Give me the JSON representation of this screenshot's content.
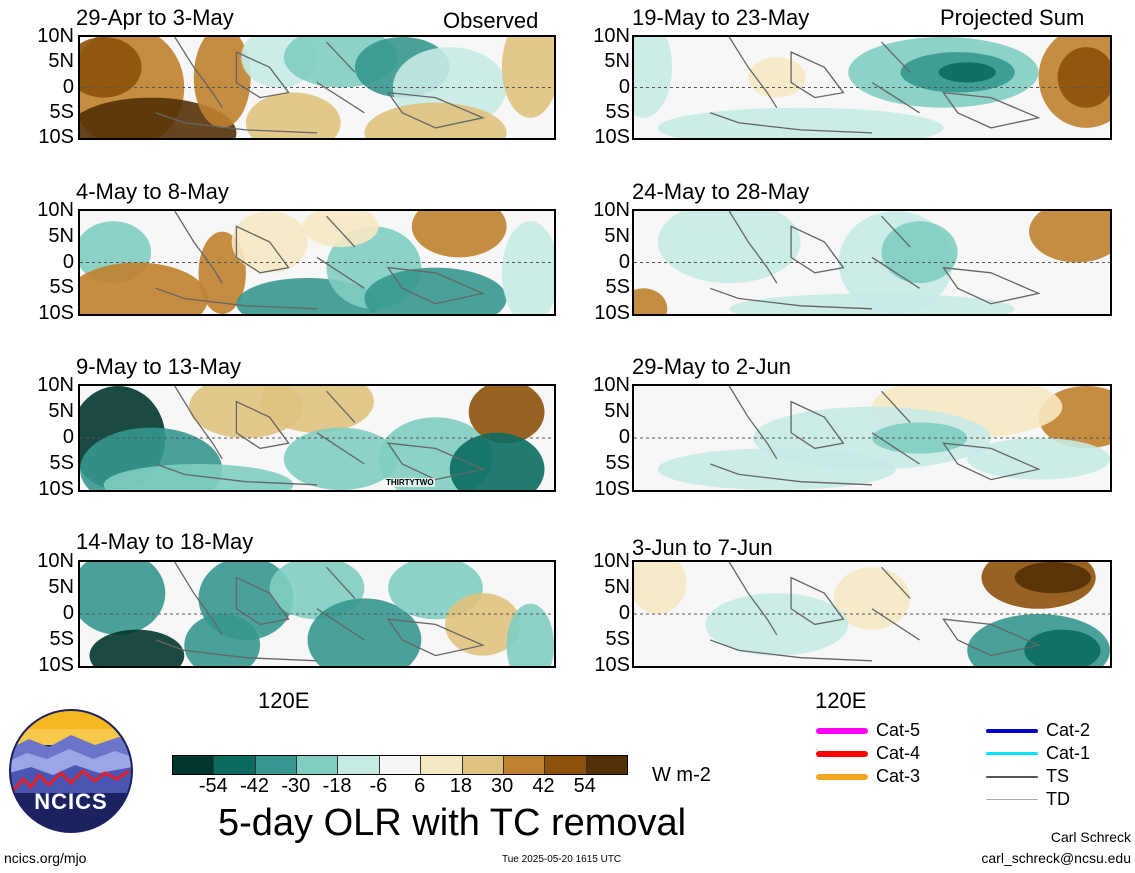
{
  "panels_left": [
    {
      "title": "29-Apr to 3-May",
      "tag": "Observed"
    },
    {
      "title": "4-May to 8-May",
      "tag": ""
    },
    {
      "title": "9-May to 13-May",
      "tag": ""
    },
    {
      "title": "14-May to 18-May",
      "tag": ""
    }
  ],
  "panels_right": [
    {
      "title": "19-May to 23-May",
      "tag": "Projected Sum"
    },
    {
      "title": "24-May to 28-May",
      "tag": ""
    },
    {
      "title": "29-May to 2-Jun",
      "tag": ""
    },
    {
      "title": "3-Jun to 7-Jun",
      "tag": ""
    }
  ],
  "y_ticks": [
    "10N",
    "5N",
    "0",
    "5S",
    "10S"
  ],
  "x_tick": "120E",
  "storm_label": "THIRTYTWO",
  "colorbar": {
    "colors": [
      "#01362e",
      "#0a6c60",
      "#35978f",
      "#80cdc1",
      "#c7eae5",
      "#f5f5f5",
      "#f6e8c3",
      "#dfc27d",
      "#bf812d",
      "#8c510a",
      "#543005"
    ],
    "ticks": [
      "-54",
      "-42",
      "-30",
      "-18",
      "-6",
      "6",
      "18",
      "30",
      "42",
      "54"
    ],
    "units": "W m-2"
  },
  "main_title": "5-day OLR with TC removal",
  "legend": [
    {
      "label": "Cat-5",
      "color": "#ff00ff",
      "width": 6
    },
    {
      "label": "Cat-4",
      "color": "#ff0000",
      "width": 6
    },
    {
      "label": "Cat-3",
      "color": "#f5a623",
      "width": 6
    },
    {
      "label": "Cat-2",
      "color": "#0000cc",
      "width": 4
    },
    {
      "label": "Cat-1",
      "color": "#00e5ff",
      "width": 3
    },
    {
      "label": "TS",
      "color": "#555555",
      "width": 2
    },
    {
      "label": "TD",
      "color": "#aaaaaa",
      "width": 1
    }
  ],
  "logo_text": "NCICS",
  "footer": {
    "url": "ncics.org/mjo",
    "timestamp": "Tue 2025-05-20 1615 UTC",
    "author": "Carl Schreck",
    "email": "carl_schreck@ncsu.edu"
  },
  "chart_data": {
    "type": "heatmap",
    "variable": "OLR anomaly",
    "units": "W m-2",
    "levels": [
      -54,
      -42,
      -30,
      -18,
      -6,
      6,
      18,
      30,
      42,
      54
    ],
    "y_ticks": [
      "10N",
      "5N",
      "0",
      "5S",
      "10S"
    ],
    "x_ticks": [
      "120E"
    ],
    "panels": [
      {
        "title": "29-Apr to 3-May",
        "type": "observed"
      },
      {
        "title": "4-May to 8-May",
        "type": "observed"
      },
      {
        "title": "9-May to 13-May",
        "type": "observed"
      },
      {
        "title": "14-May to 18-May",
        "type": "observed"
      },
      {
        "title": "19-May to 23-May",
        "type": "projected"
      },
      {
        "title": "24-May to 28-May",
        "type": "projected"
      },
      {
        "title": "29-May to 2-Jun",
        "type": "projected"
      },
      {
        "title": "3-Jun to 7-Jun",
        "type": "projected"
      }
    ]
  }
}
